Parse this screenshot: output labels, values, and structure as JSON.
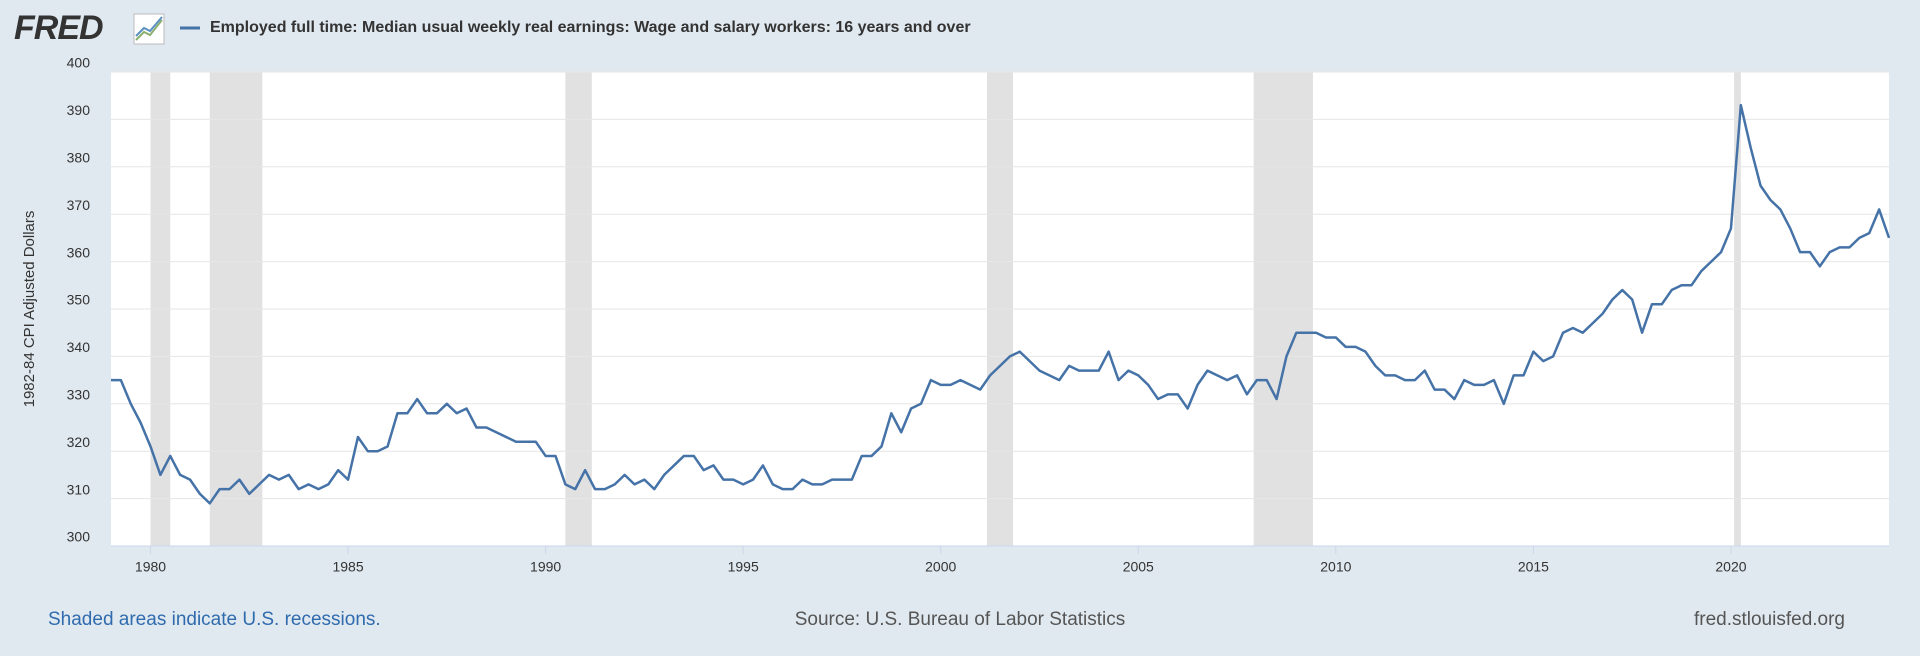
{
  "chart_data": {
    "type": "line",
    "logo": "FRED",
    "series": [
      {
        "name": "Employed full time: Median usual weekly real earnings: Wage and salary workers: 16 years and over",
        "color": "#4572a7",
        "values": [
          335,
          335,
          330,
          326,
          321,
          315,
          319,
          315,
          314,
          311,
          309,
          312,
          312,
          314,
          311,
          313,
          315,
          314,
          315,
          312,
          313,
          312,
          313,
          316,
          314,
          323,
          320,
          320,
          321,
          328,
          328,
          331,
          328,
          328,
          330,
          328,
          329,
          325,
          325,
          324,
          323,
          322,
          322,
          322,
          319,
          319,
          313,
          312,
          316,
          312,
          312,
          313,
          315,
          313,
          314,
          312,
          315,
          317,
          319,
          319,
          316,
          317,
          314,
          314,
          313,
          314,
          317,
          313,
          312,
          312,
          314,
          313,
          313,
          314,
          314,
          314,
          319,
          319,
          321,
          328,
          324,
          329,
          330,
          335,
          334,
          334,
          335,
          334,
          333,
          336,
          338,
          340,
          341,
          339,
          337,
          336,
          335,
          338,
          337,
          337,
          337,
          341,
          335,
          337,
          336,
          334,
          331,
          332,
          332,
          329,
          334,
          337,
          336,
          335,
          336,
          332,
          335,
          335,
          331,
          340,
          345,
          345,
          345,
          344,
          344,
          342,
          342,
          341,
          338,
          336,
          336,
          335,
          335,
          337,
          333,
          333,
          331,
          335,
          334,
          334,
          335,
          330,
          336,
          336,
          341,
          339,
          340,
          345,
          346,
          345,
          347,
          349,
          352,
          354,
          352,
          345,
          351,
          351,
          354,
          355,
          355,
          358,
          360,
          362,
          367,
          393,
          384,
          376,
          373,
          371,
          367,
          362,
          362,
          359,
          362,
          363,
          363,
          365,
          366,
          371,
          365
        ]
      }
    ],
    "x": [
      1979,
      1979.25,
      1979.5,
      1979.75,
      1980,
      1980.25,
      1980.5,
      1980.75,
      1981,
      1981.25,
      1981.5,
      1981.75,
      1982,
      1982.25,
      1982.5,
      1982.75,
      1983,
      1983.25,
      1983.5,
      1983.75,
      1984,
      1984.25,
      1984.5,
      1984.75,
      1985,
      1985.25,
      1985.5,
      1985.75,
      1986,
      1986.25,
      1986.5,
      1986.75,
      1987,
      1987.25,
      1987.5,
      1987.75,
      1988,
      1988.25,
      1988.5,
      1988.75,
      1989,
      1989.25,
      1989.5,
      1989.75,
      1990,
      1990.25,
      1990.5,
      1990.75,
      1991,
      1991.25,
      1991.5,
      1991.75,
      1992,
      1992.25,
      1992.5,
      1992.75,
      1993,
      1993.25,
      1993.5,
      1993.75,
      1994,
      1994.25,
      1994.5,
      1994.75,
      1995,
      1995.25,
      1995.5,
      1995.75,
      1996,
      1996.25,
      1996.5,
      1996.75,
      1997,
      1997.25,
      1997.5,
      1997.75,
      1998,
      1998.25,
      1998.5,
      1998.75,
      1999,
      1999.25,
      1999.5,
      1999.75,
      2000,
      2000.25,
      2000.5,
      2000.75,
      2001,
      2001.25,
      2001.5,
      2001.75,
      2002,
      2002.25,
      2002.5,
      2002.75,
      2003,
      2003.25,
      2003.5,
      2003.75,
      2004,
      2004.25,
      2004.5,
      2004.75,
      2005,
      2005.25,
      2005.5,
      2005.75,
      2006,
      2006.25,
      2006.5,
      2006.75,
      2007,
      2007.25,
      2007.5,
      2007.75,
      2008,
      2008.25,
      2008.5,
      2008.75,
      2009,
      2009.25,
      2009.5,
      2009.75,
      2010,
      2010.25,
      2010.5,
      2010.75,
      2011,
      2011.25,
      2011.5,
      2011.75,
      2012,
      2012.25,
      2012.5,
      2012.75,
      2013,
      2013.25,
      2013.5,
      2013.75,
      2014,
      2014.25,
      2014.5,
      2014.75,
      2015,
      2015.25,
      2015.5,
      2015.75,
      2016,
      2016.25,
      2016.5,
      2016.75,
      2017,
      2017.25,
      2017.5,
      2017.75,
      2018,
      2018.25,
      2018.5,
      2018.75,
      2019,
      2019.25,
      2019.5,
      2019.75,
      2020,
      2020.25,
      2020.5,
      2020.75,
      2021,
      2021.25,
      2021.5,
      2021.75,
      2022,
      2022.25,
      2022.5,
      2022.75,
      2023,
      2023.25,
      2023.5,
      2023.75,
      2024
    ],
    "xlim": [
      1979,
      2024
    ],
    "xticks": [
      1980,
      1985,
      1990,
      1995,
      2000,
      2005,
      2010,
      2015,
      2020
    ],
    "ylim": [
      300,
      400
    ],
    "yticks": [
      300,
      310,
      320,
      330,
      340,
      350,
      360,
      370,
      380,
      390,
      400
    ],
    "ylabel": "1982-84 CPI Adjusted Dollars",
    "grid": true,
    "recessions": [
      [
        1980,
        1980.5
      ],
      [
        1981.5,
        1982.83
      ],
      [
        1990.5,
        1991.17
      ],
      [
        2001.17,
        2001.83
      ],
      [
        2007.92,
        2009.42
      ],
      [
        2020.08,
        2020.25
      ]
    ],
    "recession_color": "#e1e1e1",
    "note": "Shaded areas indicate U.S. recessions.",
    "source": "Source: U.S. Bureau of Labor Statistics",
    "url": "fred.stlouisfed.org"
  }
}
